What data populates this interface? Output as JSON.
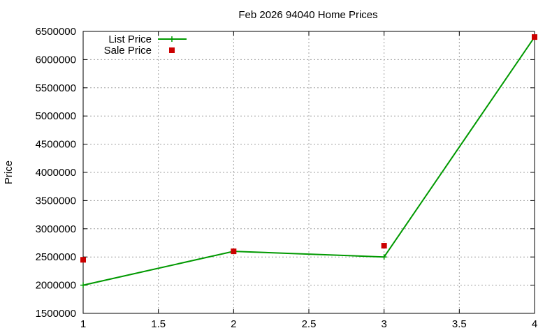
{
  "chart_data": {
    "type": "line",
    "title": "Feb 2026 94040 Home Prices",
    "xlabel": "",
    "ylabel": "Price",
    "xlim": [
      1,
      4
    ],
    "ylim": [
      1500000,
      6500000
    ],
    "x_ticks": [
      "1",
      "1.5",
      "2",
      "2.5",
      "3",
      "3.5",
      "4"
    ],
    "x_tick_values": [
      1,
      1.5,
      2,
      2.5,
      3,
      3.5,
      4
    ],
    "y_ticks": [
      "1500000",
      "2000000",
      "2500000",
      "3000000",
      "3500000",
      "4000000",
      "4500000",
      "5000000",
      "5500000",
      "6000000",
      "6500000"
    ],
    "y_tick_values": [
      1500000,
      2000000,
      2500000,
      3000000,
      3500000,
      4000000,
      4500000,
      5000000,
      5500000,
      6000000,
      6500000
    ],
    "grid": true,
    "legend_position": "top-left",
    "x": [
      1,
      2,
      3,
      4
    ],
    "series": [
      {
        "name": "List Price",
        "style": "linespoints",
        "color": "#009900",
        "values": [
          2000000,
          2600000,
          2500000,
          6400000
        ]
      },
      {
        "name": "Sale Price",
        "style": "points",
        "color": "#cc0000",
        "values": [
          2450000,
          2600000,
          2700000,
          6400000
        ]
      }
    ]
  }
}
